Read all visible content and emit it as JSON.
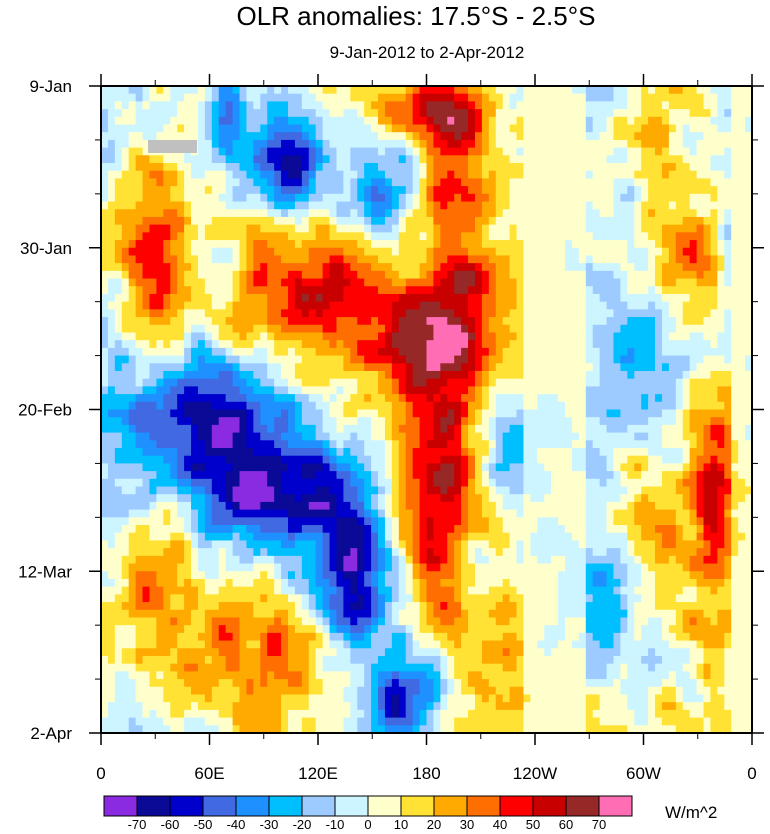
{
  "chart_data": {
    "type": "heatmap",
    "title": "OLR anomalies: 17.5°S - 2.5°S",
    "subtitle": "9-Jan-2012 to 2-Apr-2012",
    "x_tick_labels": [
      "0",
      "60E",
      "120E",
      "180",
      "120W",
      "60W",
      "0"
    ],
    "x_tick_lon": [
      0,
      60,
      120,
      180,
      240,
      300,
      360
    ],
    "x_range_lon": [
      0,
      360
    ],
    "y_tick_labels": [
      "9-Jan",
      "30-Jan",
      "20-Feb",
      "12-Mar",
      "2-Apr"
    ],
    "y_tick_day": [
      0,
      21,
      42,
      63,
      84
    ],
    "y_range_day": [
      0,
      84
    ],
    "y_direction": "time increases downward",
    "colorbar": {
      "unit": "W/m^2",
      "placement": "bottom",
      "labels": [
        "-70",
        "-60",
        "-50",
        "-40",
        "-30",
        "-20",
        "-10",
        "0",
        "10",
        "20",
        "30",
        "40",
        "50",
        "60",
        "70"
      ],
      "levels": [
        -70,
        -60,
        -50,
        -40,
        -30,
        -20,
        -10,
        0,
        10,
        20,
        30,
        40,
        50,
        60,
        70
      ],
      "colors": [
        "#8a2be2",
        "#0a0a96",
        "#0000cd",
        "#4169e1",
        "#1e90ff",
        "#00bfff",
        "#9ecbff",
        "#cdf5ff",
        "#ffffcc",
        "#ffe233",
        "#ffaa00",
        "#ff6e00",
        "#ff0000",
        "#c80000",
        "#962828",
        "#ff6eb4"
      ]
    },
    "features": [
      {
        "lon": 105,
        "day": 9,
        "value": -62,
        "sigma_lon": 14,
        "sigma_day": 4
      },
      {
        "lon": 155,
        "day": 14,
        "value": -48,
        "sigma_lon": 14,
        "sigma_day": 4
      },
      {
        "lon": 70,
        "day": 5,
        "value": -40,
        "sigma_lon": 8,
        "sigma_day": 5
      },
      {
        "lon": 185,
        "day": 3,
        "value": 45,
        "sigma_lon": 25,
        "sigma_day": 3
      },
      {
        "lon": 195,
        "day": 13,
        "value": 45,
        "sigma_lon": 15,
        "sigma_day": 6
      },
      {
        "lon": 30,
        "day": 24,
        "value": 42,
        "sigma_lon": 14,
        "sigma_day": 9
      },
      {
        "lon": 120,
        "day": 27,
        "value": 52,
        "sigma_lon": 28,
        "sigma_day": 6
      },
      {
        "lon": 180,
        "day": 33,
        "value": 52,
        "sigma_lon": 22,
        "sigma_day": 6
      },
      {
        "lon": 205,
        "day": 27,
        "value": 35,
        "sigma_lon": 15,
        "sigma_day": 6
      },
      {
        "lon": 320,
        "day": 23,
        "value": 42,
        "sigma_lon": 14,
        "sigma_day": 6
      },
      {
        "lon": 300,
        "day": 35,
        "value": -32,
        "sigma_lon": 18,
        "sigma_day": 8
      },
      {
        "lon": 60,
        "day": 43,
        "value": -62,
        "sigma_lon": 28,
        "sigma_day": 6
      },
      {
        "lon": 110,
        "day": 52,
        "value": -48,
        "sigma_lon": 30,
        "sigma_day": 5
      },
      {
        "lon": 75,
        "day": 56,
        "value": -32,
        "sigma_lon": 25,
        "sigma_day": 6
      },
      {
        "lon": 140,
        "day": 64,
        "value": -65,
        "sigma_lon": 20,
        "sigma_day": 6
      },
      {
        "lon": 165,
        "day": 80,
        "value": -62,
        "sigma_lon": 14,
        "sigma_day": 4
      },
      {
        "lon": 182,
        "day": 57,
        "value": 52,
        "sigma_lon": 15,
        "sigma_day": 9
      },
      {
        "lon": 195,
        "day": 45,
        "value": 32,
        "sigma_lon": 20,
        "sigma_day": 8
      },
      {
        "lon": 90,
        "day": 72,
        "value": 40,
        "sigma_lon": 25,
        "sigma_day": 8
      },
      {
        "lon": 30,
        "day": 65,
        "value": 30,
        "sigma_lon": 15,
        "sigma_day": 8
      },
      {
        "lon": 340,
        "day": 52,
        "value": 48,
        "sigma_lon": 10,
        "sigma_day": 10
      },
      {
        "lon": 310,
        "day": 60,
        "value": 25,
        "sigma_lon": 15,
        "sigma_day": 8
      },
      {
        "lon": 235,
        "day": 47,
        "value": -28,
        "sigma_lon": 20,
        "sigma_day": 6
      },
      {
        "lon": 270,
        "day": 68,
        "value": -30,
        "sigma_lon": 20,
        "sigma_day": 6
      },
      {
        "lon": 305,
        "day": 5,
        "value": 28,
        "sigma_lon": 10,
        "sigma_day": 5
      },
      {
        "lon": 225,
        "day": 75,
        "value": 22,
        "sigma_lon": 25,
        "sigma_day": 8
      },
      {
        "lon": 10,
        "day": 42,
        "value": -22,
        "sigma_lon": 12,
        "sigma_day": 10
      },
      {
        "lon": 345,
        "day": 78,
        "value": 12,
        "sigma_lon": 12,
        "sigma_day": 10
      }
    ]
  }
}
